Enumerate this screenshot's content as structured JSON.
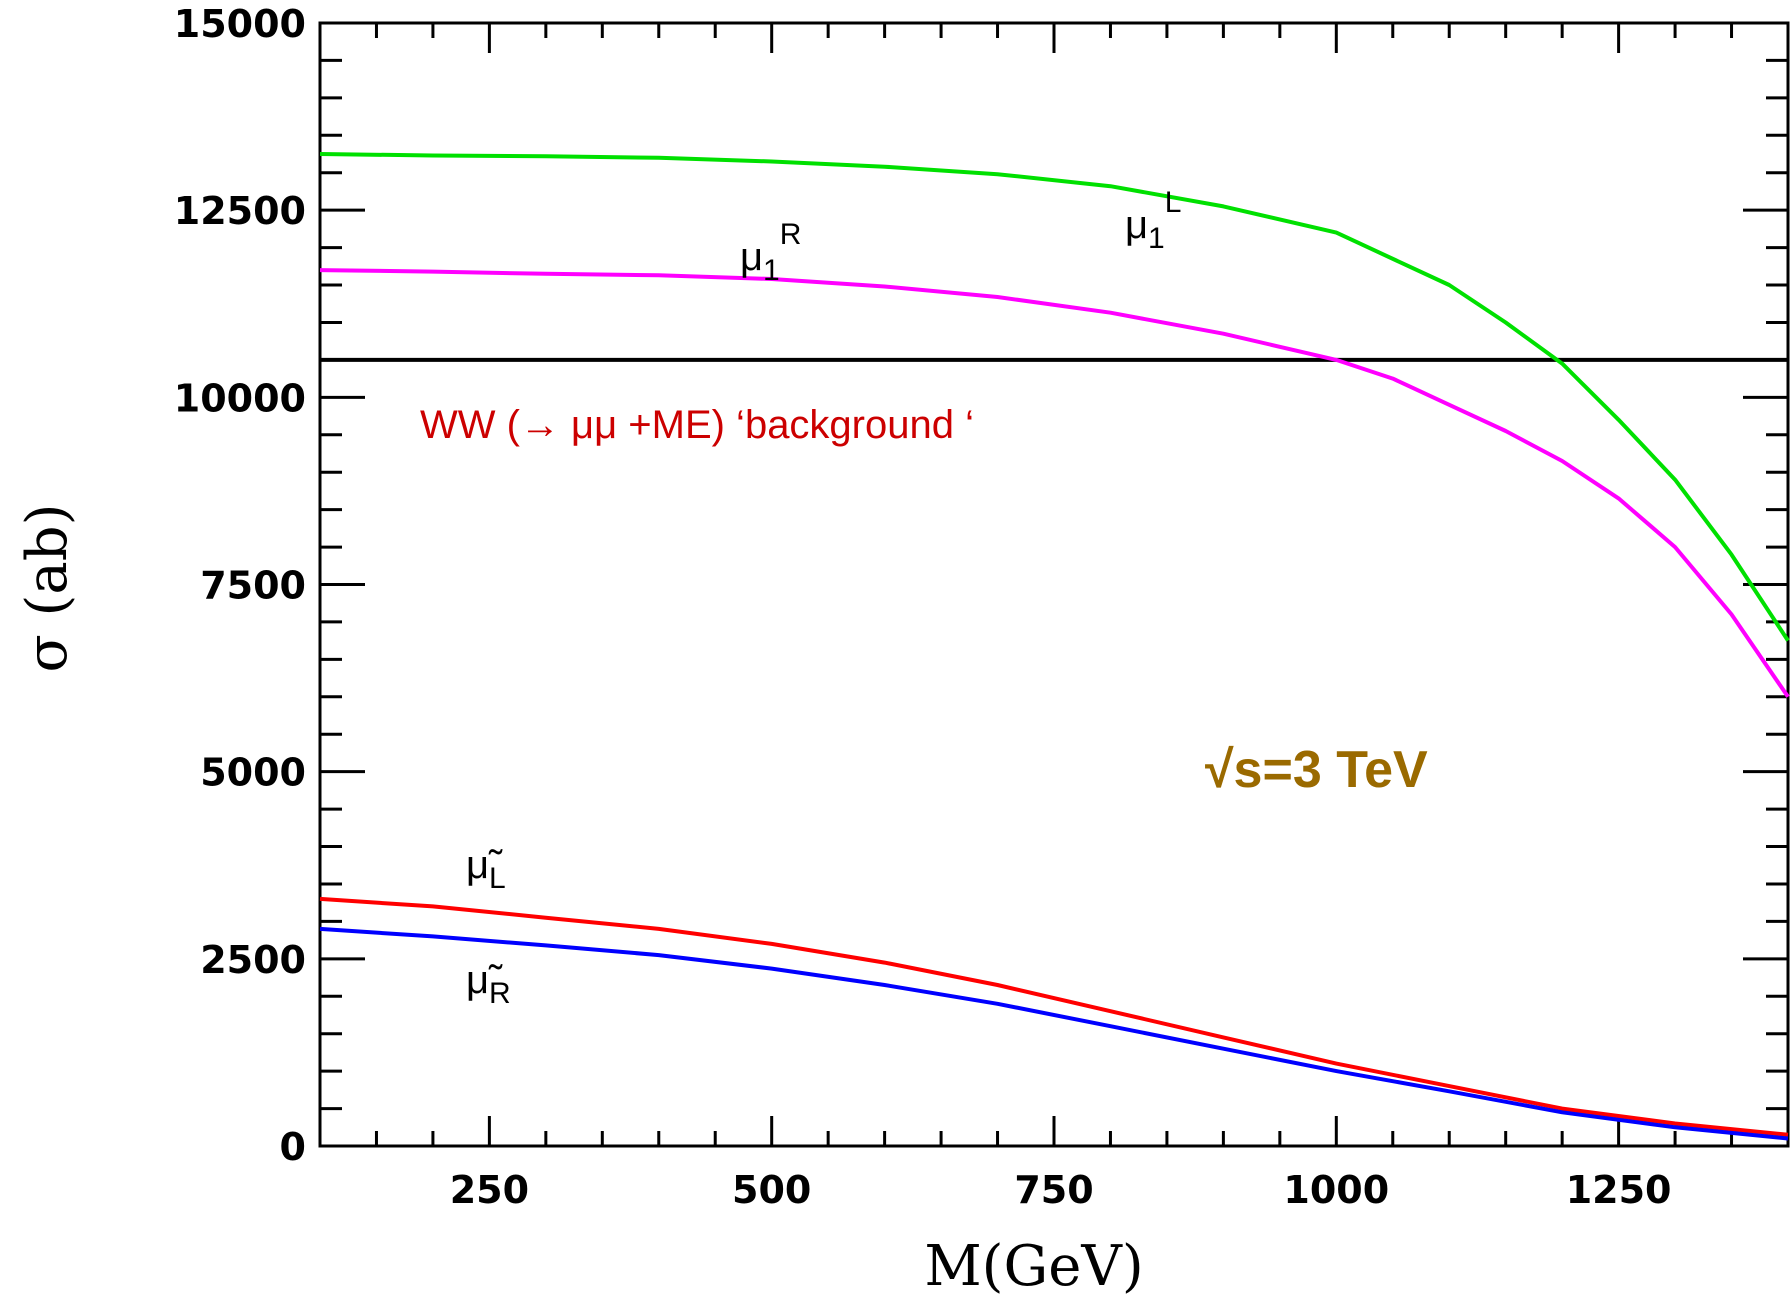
{
  "chart_data": {
    "type": "line",
    "xlabel": "M(GeV)",
    "ylabel": "σ (ab)",
    "xlim": [
      100,
      1400
    ],
    "ylim": [
      0,
      15000
    ],
    "x_ticks": [
      250,
      500,
      750,
      1000,
      1250
    ],
    "y_ticks": [
      0,
      2500,
      5000,
      7500,
      10000,
      12500,
      15000
    ],
    "grid": false,
    "series": [
      {
        "name_base": "μ",
        "name_sub": "1",
        "name_sup": "L",
        "color": "#00e000",
        "x": [
          100,
          200,
          300,
          400,
          500,
          600,
          700,
          800,
          900,
          1000,
          1100,
          1150,
          1200,
          1250,
          1300,
          1350,
          1400
        ],
        "y": [
          13250,
          13230,
          13220,
          13200,
          13150,
          13080,
          12980,
          12820,
          12550,
          12200,
          11500,
          11000,
          10450,
          9700,
          8900,
          7900,
          6750
        ]
      },
      {
        "name_base": "μ",
        "name_sub": "1",
        "name_sup": "R",
        "color": "#ff00ff",
        "x": [
          100,
          200,
          300,
          400,
          500,
          600,
          700,
          800,
          900,
          1000,
          1050,
          1100,
          1150,
          1200,
          1250,
          1300,
          1350,
          1400
        ],
        "y": [
          11700,
          11680,
          11650,
          11630,
          11580,
          11480,
          11340,
          11130,
          10850,
          10500,
          10250,
          9900,
          9550,
          9150,
          8650,
          8000,
          7100,
          6000
        ]
      },
      {
        "name_base": "μ̃",
        "name_sub": "L",
        "color": "#ff0000",
        "x": [
          100,
          200,
          300,
          400,
          500,
          600,
          700,
          800,
          900,
          1000,
          1100,
          1200,
          1300,
          1400
        ],
        "y": [
          3300,
          3200,
          3050,
          2900,
          2700,
          2450,
          2150,
          1800,
          1450,
          1100,
          800,
          500,
          300,
          150
        ]
      },
      {
        "name_base": "μ̃",
        "name_sub": "R",
        "color": "#0000ff",
        "x": [
          100,
          200,
          300,
          400,
          500,
          600,
          700,
          800,
          900,
          1000,
          1100,
          1200,
          1300,
          1400
        ],
        "y": [
          2900,
          2800,
          2680,
          2550,
          2370,
          2150,
          1900,
          1600,
          1300,
          1000,
          730,
          450,
          250,
          100
        ]
      }
    ],
    "reference_lines": [
      {
        "y": 10500,
        "color": "#000000"
      }
    ],
    "annotations": [
      {
        "text": "WW (→ μμ +ME)  ‘background ‘",
        "color": "#cc0000"
      },
      {
        "text": "√s=3 TeV",
        "color": "#9a6a00"
      }
    ]
  }
}
